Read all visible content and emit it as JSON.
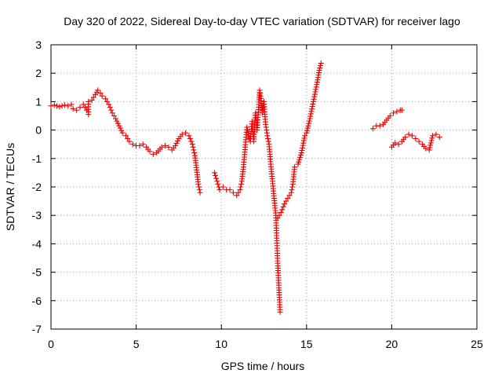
{
  "chart_data": {
    "type": "scatter",
    "title": "Day 320 of 2022, Sidereal Day-to-day VTEC variation (SDTVAR) for receiver lago",
    "xlabel": "GPS time / hours",
    "ylabel": "SDTVAR / TECUs",
    "xlim": [
      0,
      25
    ],
    "ylim": [
      -7,
      3
    ],
    "xticks": [
      0,
      5,
      10,
      15,
      20,
      25
    ],
    "yticks": [
      -7,
      -6,
      -5,
      -4,
      -3,
      -2,
      -1,
      0,
      1,
      2,
      3
    ],
    "grid": true,
    "marker": "+",
    "color": "#ee0000",
    "series": [
      {
        "name": "SDTVAR",
        "points": [
          [
            0.0,
            0.85
          ],
          [
            0.2,
            0.88
          ],
          [
            0.5,
            0.82
          ],
          [
            0.8,
            0.88
          ],
          [
            1.0,
            0.85
          ],
          [
            1.2,
            0.9
          ],
          [
            1.3,
            0.75
          ],
          [
            1.5,
            0.7
          ],
          [
            1.7,
            0.8
          ],
          [
            1.9,
            0.9
          ],
          [
            2.1,
            0.7
          ],
          [
            2.2,
            0.55
          ],
          [
            2.2,
            1.0
          ],
          [
            2.4,
            1.05
          ],
          [
            2.6,
            1.25
          ],
          [
            2.75,
            1.4
          ],
          [
            2.9,
            1.3
          ],
          [
            3.0,
            1.2
          ],
          [
            3.2,
            1.1
          ],
          [
            3.4,
            0.9
          ],
          [
            3.6,
            0.6
          ],
          [
            3.8,
            0.4
          ],
          [
            4.0,
            0.15
          ],
          [
            4.2,
            -0.1
          ],
          [
            4.4,
            -0.2
          ],
          [
            4.6,
            -0.4
          ],
          [
            4.8,
            -0.5
          ],
          [
            5.0,
            -0.55
          ],
          [
            5.2,
            -0.55
          ],
          [
            5.4,
            -0.5
          ],
          [
            5.6,
            -0.6
          ],
          [
            5.8,
            -0.75
          ],
          [
            6.0,
            -0.85
          ],
          [
            6.2,
            -0.8
          ],
          [
            6.5,
            -0.6
          ],
          [
            6.7,
            -0.55
          ],
          [
            6.9,
            -0.6
          ],
          [
            7.1,
            -0.7
          ],
          [
            7.3,
            -0.55
          ],
          [
            7.5,
            -0.3
          ],
          [
            7.7,
            -0.15
          ],
          [
            7.9,
            -0.1
          ],
          [
            8.1,
            -0.2
          ],
          [
            8.3,
            -0.5
          ],
          [
            8.45,
            -0.9
          ],
          [
            8.55,
            -1.4
          ],
          [
            8.65,
            -1.9
          ],
          [
            8.75,
            -2.2
          ],
          [
            9.6,
            -1.5
          ],
          [
            9.7,
            -1.7
          ],
          [
            9.8,
            -1.9
          ],
          [
            9.9,
            -2.1
          ],
          [
            10.1,
            -2.0
          ],
          [
            10.3,
            -2.1
          ],
          [
            10.5,
            -2.1
          ],
          [
            10.7,
            -2.2
          ],
          [
            10.9,
            -2.3
          ],
          [
            11.1,
            -2.1
          ],
          [
            11.2,
            -1.8
          ],
          [
            11.3,
            -1.3
          ],
          [
            11.4,
            -0.6
          ],
          [
            11.5,
            0.1
          ],
          [
            11.6,
            -0.2
          ],
          [
            11.7,
            -0.4
          ],
          [
            11.8,
            0.3
          ],
          [
            11.9,
            -0.4
          ],
          [
            12.0,
            0.6
          ],
          [
            12.1,
            0.0
          ],
          [
            12.2,
            0.9
          ],
          [
            12.25,
            1.4
          ],
          [
            12.3,
            1.2
          ],
          [
            12.4,
            0.6
          ],
          [
            12.5,
            1.0
          ],
          [
            12.6,
            0.2
          ],
          [
            12.7,
            -0.2
          ],
          [
            12.8,
            -0.5
          ],
          [
            12.9,
            -1.2
          ],
          [
            13.0,
            -1.8
          ],
          [
            13.1,
            -2.4
          ],
          [
            13.2,
            -3.0
          ],
          [
            13.25,
            -3.8
          ],
          [
            13.3,
            -4.6
          ],
          [
            13.35,
            -5.2
          ],
          [
            13.4,
            -5.8
          ],
          [
            13.45,
            -6.4
          ],
          [
            13.3,
            -3.1
          ],
          [
            13.5,
            -2.9
          ],
          [
            13.7,
            -2.6
          ],
          [
            13.9,
            -2.4
          ],
          [
            14.1,
            -2.2
          ],
          [
            14.2,
            -1.9
          ],
          [
            14.3,
            -1.3
          ],
          [
            14.5,
            -1.2
          ],
          [
            14.7,
            -0.8
          ],
          [
            14.9,
            -0.2
          ],
          [
            15.0,
            -0.1
          ],
          [
            15.2,
            0.4
          ],
          [
            15.4,
            1.0
          ],
          [
            15.6,
            1.6
          ],
          [
            15.75,
            2.1
          ],
          [
            15.85,
            2.35
          ],
          [
            18.9,
            0.05
          ],
          [
            19.1,
            0.15
          ],
          [
            19.3,
            0.15
          ],
          [
            19.5,
            0.2
          ],
          [
            19.7,
            0.35
          ],
          [
            19.9,
            0.5
          ],
          [
            20.1,
            0.6
          ],
          [
            20.3,
            0.65
          ],
          [
            20.5,
            0.7
          ],
          [
            20.6,
            0.7
          ],
          [
            20.0,
            -0.6
          ],
          [
            20.2,
            -0.45
          ],
          [
            20.4,
            -0.5
          ],
          [
            20.6,
            -0.4
          ],
          [
            20.8,
            -0.25
          ],
          [
            21.0,
            -0.15
          ],
          [
            21.2,
            -0.2
          ],
          [
            21.4,
            -0.3
          ],
          [
            21.6,
            -0.4
          ],
          [
            21.8,
            -0.5
          ],
          [
            22.0,
            -0.65
          ],
          [
            22.2,
            -0.7
          ],
          [
            22.4,
            -0.2
          ],
          [
            22.6,
            -0.15
          ],
          [
            22.8,
            -0.25
          ]
        ]
      }
    ]
  }
}
